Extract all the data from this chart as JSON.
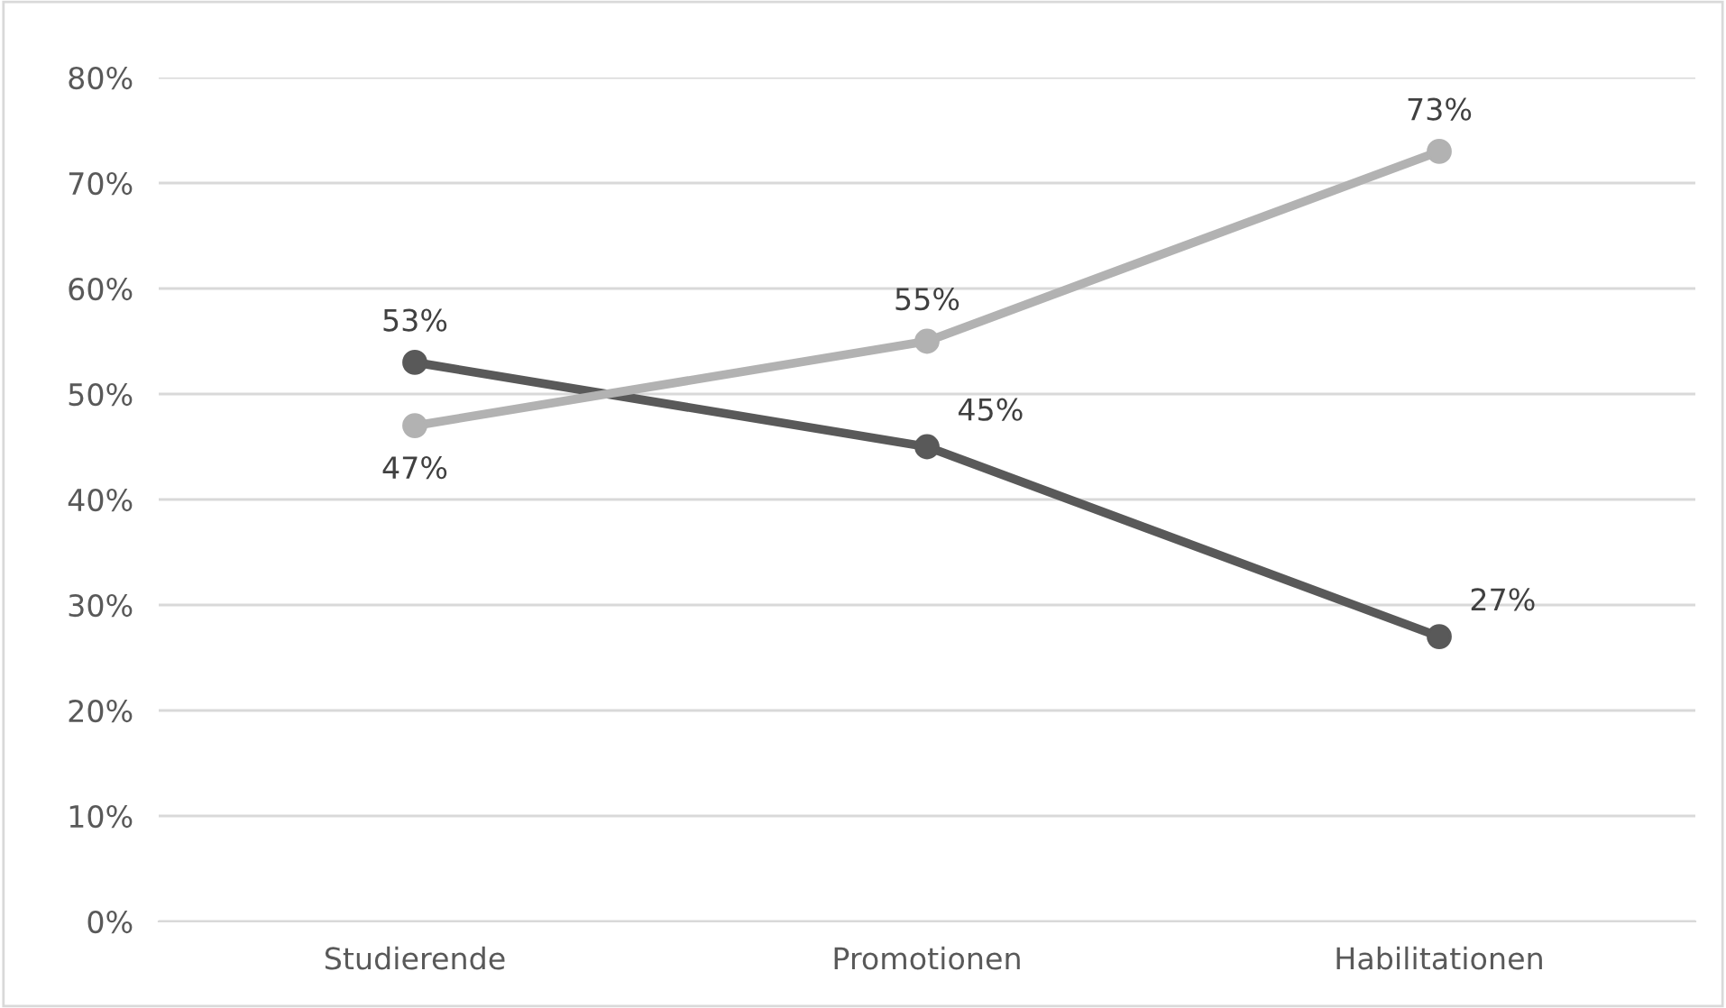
{
  "chart_data": {
    "type": "line",
    "categories": [
      "Studierende",
      "Promotionen",
      "Habilitationen"
    ],
    "series": [
      {
        "color": "#595959",
        "values": [
          53,
          45,
          27
        ],
        "value_labels": [
          "53%",
          "45%",
          "27%"
        ]
      },
      {
        "color": "#b2b2b2",
        "values": [
          47,
          55,
          73
        ],
        "value_labels": [
          "47%",
          "55%",
          "73%"
        ]
      }
    ],
    "ylim": [
      0,
      80
    ],
    "yticks": [
      {
        "value": 0,
        "label": "0%"
      },
      {
        "value": 10,
        "label": "10%"
      },
      {
        "value": 20,
        "label": "20%"
      },
      {
        "value": 30,
        "label": "30%"
      },
      {
        "value": 40,
        "label": "40%"
      },
      {
        "value": 50,
        "label": "50%"
      },
      {
        "value": 60,
        "label": "60%"
      },
      {
        "value": 70,
        "label": "70%"
      },
      {
        "value": 80,
        "label": "80%"
      }
    ],
    "grid": "y",
    "marker": "circle",
    "line_style": "solid",
    "legend": false
  }
}
